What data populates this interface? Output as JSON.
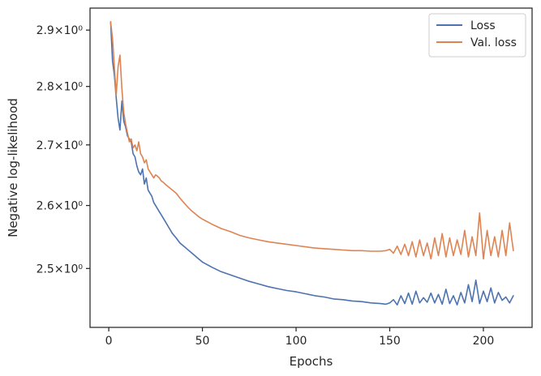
{
  "chart_data": {
    "type": "line",
    "xlabel": "Epochs",
    "ylabel": "Negative log-likelihood",
    "xlim": [
      -10,
      226
    ],
    "ylim": [
      2.41,
      2.94
    ],
    "yscale": "log",
    "xticks": [
      0,
      50,
      100,
      150,
      200
    ],
    "yticks": [
      {
        "value": 2.5,
        "label": "2.5×10⁰"
      },
      {
        "value": 2.6,
        "label": "2.6×10⁰"
      },
      {
        "value": 2.7,
        "label": "2.7×10⁰"
      },
      {
        "value": 2.8,
        "label": "2.8×10⁰"
      },
      {
        "value": 2.9,
        "label": "2.9×10⁰"
      }
    ],
    "legend_position": "top-right",
    "grid": false,
    "series": [
      {
        "name": "Loss",
        "color": "#4c72b0",
        "x": [
          1,
          2,
          3,
          4,
          5,
          6,
          7,
          8,
          9,
          10,
          11,
          12,
          13,
          14,
          15,
          16,
          17,
          18,
          19,
          20,
          21,
          22,
          23,
          24,
          25,
          26,
          27,
          28,
          29,
          30,
          32,
          34,
          36,
          38,
          40,
          42,
          44,
          46,
          48,
          50,
          55,
          60,
          65,
          70,
          75,
          80,
          85,
          90,
          95,
          100,
          105,
          110,
          115,
          120,
          125,
          130,
          135,
          140,
          145,
          148,
          150,
          152,
          154,
          156,
          158,
          160,
          162,
          164,
          166,
          168,
          170,
          172,
          174,
          176,
          178,
          180,
          182,
          184,
          186,
          188,
          190,
          192,
          194,
          196,
          198,
          200,
          202,
          204,
          206,
          208,
          210,
          212,
          214,
          216
        ],
        "y": [
          2.915,
          2.845,
          2.82,
          2.78,
          2.745,
          2.725,
          2.775,
          2.74,
          2.73,
          2.715,
          2.71,
          2.705,
          2.685,
          2.68,
          2.665,
          2.655,
          2.65,
          2.66,
          2.635,
          2.645,
          2.625,
          2.62,
          2.615,
          2.605,
          2.6,
          2.595,
          2.59,
          2.585,
          2.58,
          2.575,
          2.565,
          2.555,
          2.548,
          2.54,
          2.535,
          2.53,
          2.525,
          2.52,
          2.515,
          2.51,
          2.502,
          2.495,
          2.49,
          2.485,
          2.48,
          2.476,
          2.472,
          2.469,
          2.466,
          2.464,
          2.461,
          2.458,
          2.456,
          2.453,
          2.452,
          2.45,
          2.449,
          2.447,
          2.446,
          2.445,
          2.447,
          2.452,
          2.444,
          2.458,
          2.446,
          2.462,
          2.445,
          2.465,
          2.447,
          2.455,
          2.448,
          2.462,
          2.447,
          2.46,
          2.445,
          2.468,
          2.446,
          2.458,
          2.444,
          2.463,
          2.447,
          2.475,
          2.449,
          2.482,
          2.446,
          2.465,
          2.449,
          2.47,
          2.447,
          2.463,
          2.451,
          2.456,
          2.447,
          2.458
        ]
      },
      {
        "name": "Val. loss",
        "color": "#dd8452",
        "x": [
          1,
          2,
          3,
          4,
          5,
          6,
          7,
          8,
          9,
          10,
          11,
          12,
          13,
          14,
          15,
          16,
          17,
          18,
          19,
          20,
          21,
          22,
          23,
          24,
          25,
          26,
          27,
          28,
          29,
          30,
          32,
          34,
          36,
          38,
          40,
          42,
          44,
          46,
          48,
          50,
          55,
          60,
          65,
          70,
          75,
          80,
          85,
          90,
          95,
          100,
          105,
          110,
          115,
          120,
          125,
          130,
          135,
          140,
          145,
          148,
          150,
          152,
          154,
          156,
          158,
          160,
          162,
          164,
          166,
          168,
          170,
          172,
          174,
          176,
          178,
          180,
          182,
          184,
          186,
          188,
          190,
          192,
          194,
          196,
          198,
          200,
          202,
          204,
          206,
          208,
          210,
          212,
          214,
          216
        ],
        "y": [
          2.915,
          2.885,
          2.835,
          2.785,
          2.835,
          2.855,
          2.795,
          2.755,
          2.735,
          2.72,
          2.705,
          2.71,
          2.695,
          2.7,
          2.69,
          2.705,
          2.685,
          2.68,
          2.67,
          2.675,
          2.66,
          2.655,
          2.65,
          2.645,
          2.65,
          2.648,
          2.645,
          2.64,
          2.638,
          2.635,
          2.63,
          2.625,
          2.62,
          2.612,
          2.605,
          2.598,
          2.592,
          2.587,
          2.582,
          2.578,
          2.57,
          2.563,
          2.558,
          2.552,
          2.548,
          2.545,
          2.542,
          2.54,
          2.538,
          2.536,
          2.534,
          2.532,
          2.531,
          2.53,
          2.529,
          2.528,
          2.528,
          2.527,
          2.527,
          2.528,
          2.53,
          2.524,
          2.535,
          2.522,
          2.538,
          2.52,
          2.542,
          2.518,
          2.545,
          2.52,
          2.54,
          2.515,
          2.548,
          2.52,
          2.555,
          2.518,
          2.548,
          2.52,
          2.545,
          2.522,
          2.56,
          2.518,
          2.55,
          2.52,
          2.588,
          2.515,
          2.56,
          2.52,
          2.55,
          2.518,
          2.56,
          2.52,
          2.572,
          2.528
        ]
      }
    ]
  }
}
